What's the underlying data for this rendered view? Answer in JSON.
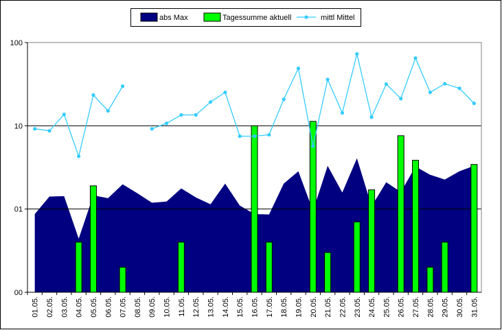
{
  "chart_data": {
    "type": "combo",
    "log_scale": true,
    "grid": true,
    "legend": "top",
    "categories": [
      "01.05.",
      "02.05.",
      "03.05.",
      "04.05.",
      "05.05.",
      "06.05.",
      "07.05.",
      "08.05.",
      "09.05.",
      "10.05.",
      "11.05.",
      "12.05.",
      "13.05.",
      "14.05.",
      "15.05.",
      "16.05.",
      "17.05.",
      "18.05.",
      "19.05.",
      "20.05.",
      "21.05.",
      "22.05.",
      "23.05.",
      "24.05.",
      "25.05.",
      "26.05.",
      "27.05.",
      "28.05.",
      "29.05.",
      "30.05.",
      "31.05."
    ],
    "ylim": [
      0.1,
      100
    ],
    "yticks": [
      {
        "value": 0.1,
        "label": "00"
      },
      {
        "value": 1,
        "label": "01"
      },
      10,
      100
    ],
    "series": [
      {
        "name": "abs Max",
        "type": "area",
        "color": "#000080",
        "values": [
          0.87,
          1.41,
          1.43,
          0.44,
          1.46,
          1.35,
          1.98,
          1.55,
          1.19,
          1.23,
          1.77,
          1.38,
          1.14,
          2.02,
          1.1,
          0.87,
          0.86,
          2.02,
          2.84,
          0.95,
          3.3,
          1.58,
          4.07,
          1.08,
          2.1,
          1.6,
          3.24,
          2.58,
          2.26,
          2.84,
          3.3
        ]
      },
      {
        "name": "Tagessumme aktuell",
        "type": "bar",
        "color": "#00ff00",
        "values": [
          null,
          null,
          null,
          0.4,
          1.9,
          null,
          0.2,
          null,
          null,
          null,
          0.4,
          null,
          null,
          null,
          null,
          10,
          0.4,
          null,
          null,
          11.3,
          0.3,
          null,
          0.7,
          1.7,
          null,
          7.6,
          3.85,
          0.2,
          0.4,
          null,
          3.43
        ]
      },
      {
        "name": "mittl Mittel",
        "type": "line",
        "color": "#33ccff",
        "values": [
          9.2,
          8.7,
          13.7,
          4.3,
          23.4,
          15.1,
          29.9,
          null,
          9.2,
          10.7,
          13.5,
          13.5,
          19.3,
          25.2,
          7.5,
          7.5,
          7.8,
          20.8,
          49,
          5.7,
          36,
          14.3,
          73,
          12.7,
          31.7,
          21.2,
          65,
          25.2,
          32,
          28.2,
          18.6
        ]
      }
    ]
  }
}
